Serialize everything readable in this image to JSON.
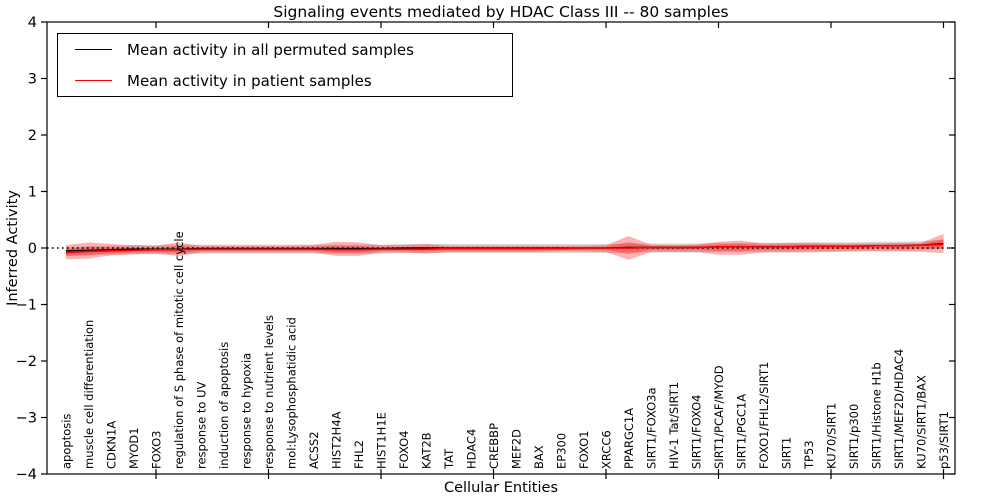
{
  "chart_data": {
    "type": "line",
    "title": "Signaling events mediated by HDAC Class III -- 80 samples",
    "xlabel": "Cellular Entities",
    "ylabel": "Inferred Activity",
    "ylim": [
      -4,
      4
    ],
    "yticks": [
      -4,
      -3,
      -2,
      -1,
      0,
      1,
      2,
      3,
      4
    ],
    "x_major_tick_every": 5,
    "grid": false,
    "legend_position": "upper left",
    "categories": [
      "apoptosis",
      "muscle cell differentiation",
      "CDKN1A",
      "MYOD1",
      "FOXO3",
      "regulation of S phase of mitotic cell cycle",
      "response to UV",
      "induction of apoptosis",
      "response to hypoxia",
      "response to nutrient levels",
      "mol:Lysophosphatidic acid",
      "ACSS2",
      "HIST2H4A",
      "FHL2",
      "HIST1H1E",
      "FOXO4",
      "KAT2B",
      "TAT",
      "HDAC4",
      "CREBBP",
      "MEF2D",
      "BAX",
      "EP300",
      "FOXO1",
      "XRCC6",
      "PPARGC1A",
      "SIRT1/FOXO3a",
      "HIV-1 Tat/SIRT1",
      "SIRT1/FOXO4",
      "SIRT1/PCAF/MYOD",
      "SIRT1/PGC1A",
      "FOXO1/FHL2/SIRT1",
      "SIRT1",
      "TP53",
      "KU70/SIRT1",
      "SIRT1/p300",
      "SIRT1/Histone H1b",
      "SIRT1/MEF2D/HDAC4",
      "KU70/SIRT1/BAX",
      "p53/SIRT1"
    ],
    "series": [
      {
        "name": "Mean activity in all permuted samples",
        "color": "#000000",
        "values": [
          -0.05,
          -0.04,
          -0.03,
          -0.02,
          -0.02,
          -0.02,
          -0.01,
          -0.01,
          -0.01,
          -0.01,
          -0.01,
          -0.01,
          -0.01,
          -0.01,
          -0.01,
          0,
          0,
          0,
          0,
          0,
          0,
          0,
          0,
          0,
          0,
          0.01,
          0.01,
          0.01,
          0.01,
          0.02,
          0.02,
          0.02,
          0.02,
          0.03,
          0.03,
          0.03,
          0.04,
          0.04,
          0.05,
          0.08
        ]
      },
      {
        "name": "Mean activity in patient samples",
        "color": "#ff0000",
        "values": [
          -0.08,
          -0.06,
          -0.05,
          -0.04,
          -0.03,
          -0.03,
          -0.02,
          -0.02,
          -0.02,
          -0.02,
          -0.02,
          -0.02,
          -0.03,
          -0.03,
          -0.02,
          -0.02,
          -0.02,
          -0.01,
          -0.01,
          -0.01,
          -0.01,
          -0.01,
          -0.01,
          0,
          0,
          0,
          0.01,
          0.01,
          0.01,
          0.02,
          0.02,
          0.02,
          0.02,
          0.03,
          0.03,
          0.03,
          0.04,
          0.04,
          0.05,
          0.06
        ]
      }
    ],
    "bands": [
      {
        "name": "permuted-samples-range",
        "color": "rgba(0,0,0,0.16)",
        "upper": [
          0.02,
          0.03,
          0.04,
          0.05,
          0.05,
          0.05,
          0.06,
          0.06,
          0.06,
          0.06,
          0.06,
          0.06,
          0.06,
          0.06,
          0.06,
          0.07,
          0.07,
          0.07,
          0.07,
          0.07,
          0.07,
          0.07,
          0.07,
          0.07,
          0.07,
          0.08,
          0.08,
          0.08,
          0.08,
          0.09,
          0.09,
          0.09,
          0.09,
          0.1,
          0.1,
          0.1,
          0.11,
          0.11,
          0.12,
          0.15
        ],
        "lower": [
          -0.14,
          -0.13,
          -0.12,
          -0.11,
          -0.11,
          -0.11,
          -0.1,
          -0.1,
          -0.1,
          -0.1,
          -0.1,
          -0.1,
          -0.1,
          -0.1,
          -0.1,
          -0.09,
          -0.09,
          -0.09,
          -0.09,
          -0.09,
          -0.09,
          -0.09,
          -0.09,
          -0.09,
          -0.09,
          -0.08,
          -0.08,
          -0.08,
          -0.08,
          -0.07,
          -0.07,
          -0.07,
          -0.07,
          -0.06,
          -0.06,
          -0.06,
          -0.05,
          -0.05,
          -0.04,
          -0.01
        ]
      },
      {
        "name": "patient-samples-range",
        "color": "rgba(255,0,0,0.30)",
        "upper": [
          0.05,
          0.1,
          0.07,
          0.05,
          0.04,
          0.1,
          0.04,
          0.04,
          0.04,
          0.04,
          0.04,
          0.05,
          0.11,
          0.1,
          0.05,
          0.05,
          0.07,
          0.04,
          0.04,
          0.04,
          0.04,
          0.04,
          0.04,
          0.04,
          0.05,
          0.21,
          0.06,
          0.05,
          0.06,
          0.11,
          0.13,
          0.08,
          0.09,
          0.09,
          0.08,
          0.08,
          0.08,
          0.09,
          0.09,
          0.25
        ],
        "lower": [
          -0.2,
          -0.19,
          -0.13,
          -0.11,
          -0.1,
          -0.14,
          -0.08,
          -0.08,
          -0.08,
          -0.08,
          -0.08,
          -0.08,
          -0.14,
          -0.14,
          -0.08,
          -0.08,
          -0.1,
          -0.07,
          -0.07,
          -0.07,
          -0.07,
          -0.07,
          -0.06,
          -0.06,
          -0.07,
          -0.21,
          -0.07,
          -0.07,
          -0.07,
          -0.12,
          -0.12,
          -0.08,
          -0.08,
          -0.08,
          -0.07,
          -0.06,
          -0.06,
          -0.06,
          -0.07,
          -0.09
        ]
      }
    ],
    "zero_line": {
      "y": 0,
      "style": "dotted",
      "color": "#000000"
    }
  },
  "legend": {
    "items": [
      {
        "label": "Mean activity in all permuted samples",
        "color": "#000000"
      },
      {
        "label": "Mean activity in patient samples",
        "color": "#ff0000"
      }
    ]
  }
}
